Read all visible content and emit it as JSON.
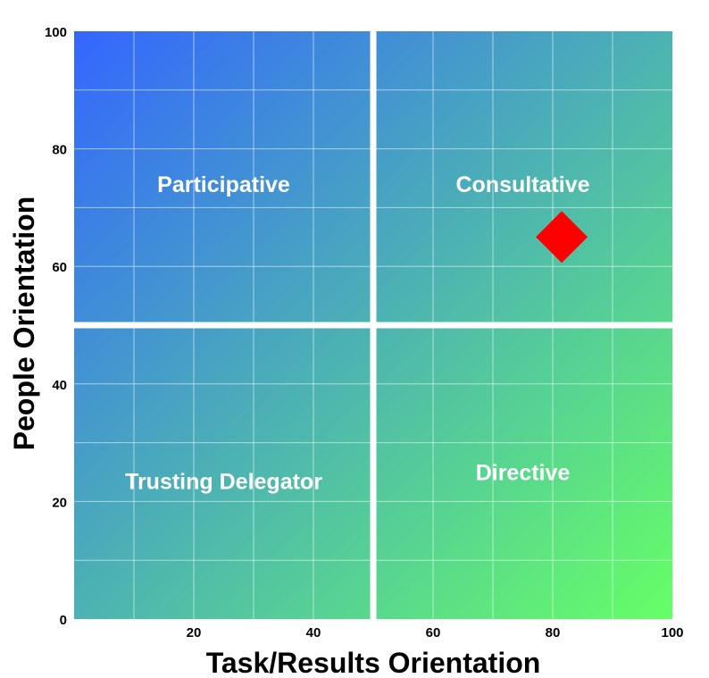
{
  "chart_data": {
    "type": "scatter",
    "xlabel": "Task/Results Orientation",
    "ylabel": "People Orientation",
    "xlim": [
      0,
      100
    ],
    "ylim": [
      0,
      100
    ],
    "x_ticks": [
      20,
      40,
      60,
      80,
      100
    ],
    "y_ticks": [
      0,
      20,
      40,
      60,
      80,
      100
    ],
    "grid": true,
    "grid_step": 10,
    "quadrant_divider": {
      "x": 50,
      "y": 50
    },
    "quadrants": [
      {
        "label": "Participative",
        "x": 25,
        "y": 74
      },
      {
        "label": "Consultative",
        "x": 75,
        "y": 74
      },
      {
        "label": "Trusting Delegator",
        "x": 25,
        "y": 23.5
      },
      {
        "label": "Directive",
        "x": 75,
        "y": 25
      }
    ],
    "points": [
      {
        "x": 81.5,
        "y": 65,
        "marker": "diamond",
        "color": "#ff0000"
      }
    ],
    "colors": {
      "gradient_top_left": "#3366ff",
      "gradient_bottom_right": "#66ff66",
      "divider": "#ffffff",
      "marker": "#ff0000"
    }
  }
}
